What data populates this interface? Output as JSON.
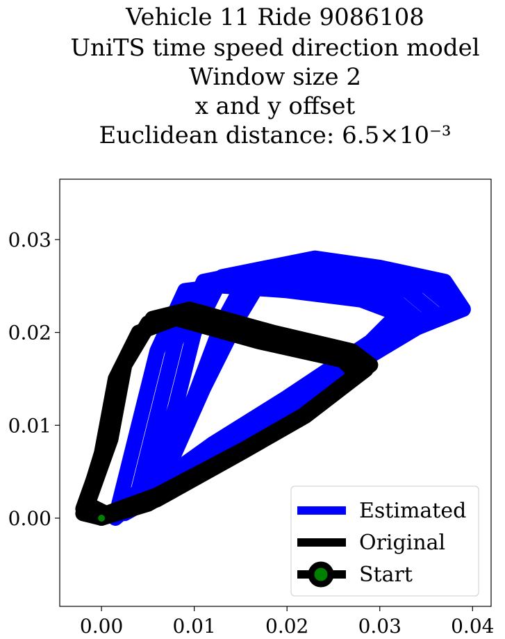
{
  "chart_data": {
    "type": "line",
    "title_lines": [
      "Vehicle 11 Ride 9086108",
      "UniTS time speed direction model",
      "Window size 2",
      "x and y offset",
      "Euclidean distance: 6.5×10⁻³"
    ],
    "xlim": [
      -0.0045,
      0.042
    ],
    "ylim": [
      -0.0095,
      0.0365
    ],
    "xticks": [
      0.0,
      0.01,
      0.02,
      0.03,
      0.04
    ],
    "xtick_labels": [
      "0.00",
      "0.01",
      "0.02",
      "0.03",
      "0.04"
    ],
    "yticks": [
      0.0,
      0.01,
      0.02,
      0.03
    ],
    "ytick_labels": [
      "0.00",
      "0.01",
      "0.02",
      "0.03"
    ],
    "legend": {
      "placement": "lower-right",
      "entries": [
        "Estimated",
        "Original",
        "Start"
      ]
    },
    "series": [
      {
        "name": "Estimated",
        "color": "#0000ff",
        "loops": [
          [
            [
              0.0015,
              0.0
            ],
            [
              0.005,
              0.003
            ],
            [
              0.012,
              0.008
            ],
            [
              0.02,
              0.013
            ],
            [
              0.029,
              0.019
            ],
            [
              0.032,
              0.022
            ],
            [
              0.028,
              0.0235
            ],
            [
              0.02,
              0.0245
            ],
            [
              0.013,
              0.025
            ],
            [
              0.009,
              0.0245
            ],
            [
              0.006,
              0.018
            ],
            [
              0.004,
              0.01
            ],
            [
              0.002,
              0.002
            ],
            [
              0.0015,
              0.0
            ]
          ],
          [
            [
              0.002,
              0.0005
            ],
            [
              0.006,
              0.003
            ],
            [
              0.013,
              0.008
            ],
            [
              0.021,
              0.013
            ],
            [
              0.03,
              0.019
            ],
            [
              0.034,
              0.0215
            ],
            [
              0.031,
              0.024
            ],
            [
              0.024,
              0.0255
            ],
            [
              0.016,
              0.0265
            ],
            [
              0.011,
              0.0255
            ],
            [
              0.008,
              0.019
            ],
            [
              0.006,
              0.011
            ],
            [
              0.004,
              0.003
            ],
            [
              0.002,
              0.0005
            ]
          ],
          [
            [
              0.0025,
              0.0005
            ],
            [
              0.007,
              0.003
            ],
            [
              0.014,
              0.008
            ],
            [
              0.022,
              0.0135
            ],
            [
              0.031,
              0.0195
            ],
            [
              0.036,
              0.022
            ],
            [
              0.033,
              0.0245
            ],
            [
              0.026,
              0.026
            ],
            [
              0.018,
              0.027
            ],
            [
              0.013,
              0.026
            ],
            [
              0.01,
              0.02
            ],
            [
              0.008,
              0.012
            ],
            [
              0.005,
              0.003
            ],
            [
              0.0025,
              0.0005
            ]
          ],
          [
            [
              0.003,
              0.001
            ],
            [
              0.008,
              0.0035
            ],
            [
              0.015,
              0.0085
            ],
            [
              0.023,
              0.014
            ],
            [
              0.032,
              0.02
            ],
            [
              0.038,
              0.0225
            ],
            [
              0.035,
              0.025
            ],
            [
              0.028,
              0.0265
            ],
            [
              0.021,
              0.0275
            ],
            [
              0.016,
              0.0265
            ],
            [
              0.013,
              0.021
            ],
            [
              0.01,
              0.013
            ],
            [
              0.006,
              0.004
            ],
            [
              0.003,
              0.001
            ]
          ],
          [
            [
              0.003,
              0.001
            ],
            [
              0.008,
              0.004
            ],
            [
              0.016,
              0.009
            ],
            [
              0.024,
              0.0145
            ],
            [
              0.034,
              0.0205
            ],
            [
              0.039,
              0.0225
            ],
            [
              0.037,
              0.0255
            ],
            [
              0.03,
              0.027
            ],
            [
              0.023,
              0.028
            ],
            [
              0.018,
              0.027
            ],
            [
              0.015,
              0.022
            ],
            [
              0.011,
              0.014
            ],
            [
              0.007,
              0.005
            ],
            [
              0.003,
              0.001
            ]
          ]
        ]
      },
      {
        "name": "Original",
        "color": "#000000",
        "loops": [
          [
            [
              0.0,
              0.0
            ],
            [
              0.006,
              0.002
            ],
            [
              0.015,
              0.007
            ],
            [
              0.022,
              0.011
            ],
            [
              0.0285,
              0.016
            ],
            [
              0.0265,
              0.0175
            ],
            [
              0.018,
              0.0195
            ],
            [
              0.009,
              0.022
            ],
            [
              0.005,
              0.021
            ],
            [
              0.002,
              0.016
            ],
            [
              0.0005,
              0.008
            ],
            [
              -0.002,
              0.001
            ],
            [
              0.0,
              0.0
            ]
          ],
          [
            [
              0.0,
              0.0
            ],
            [
              0.005,
              0.0015
            ],
            [
              0.014,
              0.0065
            ],
            [
              0.021,
              0.0105
            ],
            [
              0.0275,
              0.0155
            ],
            [
              0.026,
              0.017
            ],
            [
              0.017,
              0.019
            ],
            [
              0.008,
              0.0215
            ],
            [
              0.004,
              0.02
            ],
            [
              0.0015,
              0.015
            ],
            [
              0.0,
              0.007
            ],
            [
              -0.002,
              0.0005
            ],
            [
              0.0,
              0.0
            ]
          ],
          [
            [
              0.0005,
              0.0005
            ],
            [
              0.006,
              0.0025
            ],
            [
              0.0155,
              0.0075
            ],
            [
              0.0225,
              0.0115
            ],
            [
              0.029,
              0.0165
            ],
            [
              0.027,
              0.018
            ],
            [
              0.0185,
              0.02
            ],
            [
              0.0095,
              0.0225
            ],
            [
              0.0055,
              0.0215
            ],
            [
              0.0025,
              0.0165
            ],
            [
              0.001,
              0.0085
            ],
            [
              -0.0015,
              0.0015
            ],
            [
              0.0005,
              0.0005
            ]
          ]
        ]
      }
    ],
    "start": {
      "name": "Start",
      "x": 0.0,
      "y": 0.0,
      "color": "#008000"
    }
  }
}
